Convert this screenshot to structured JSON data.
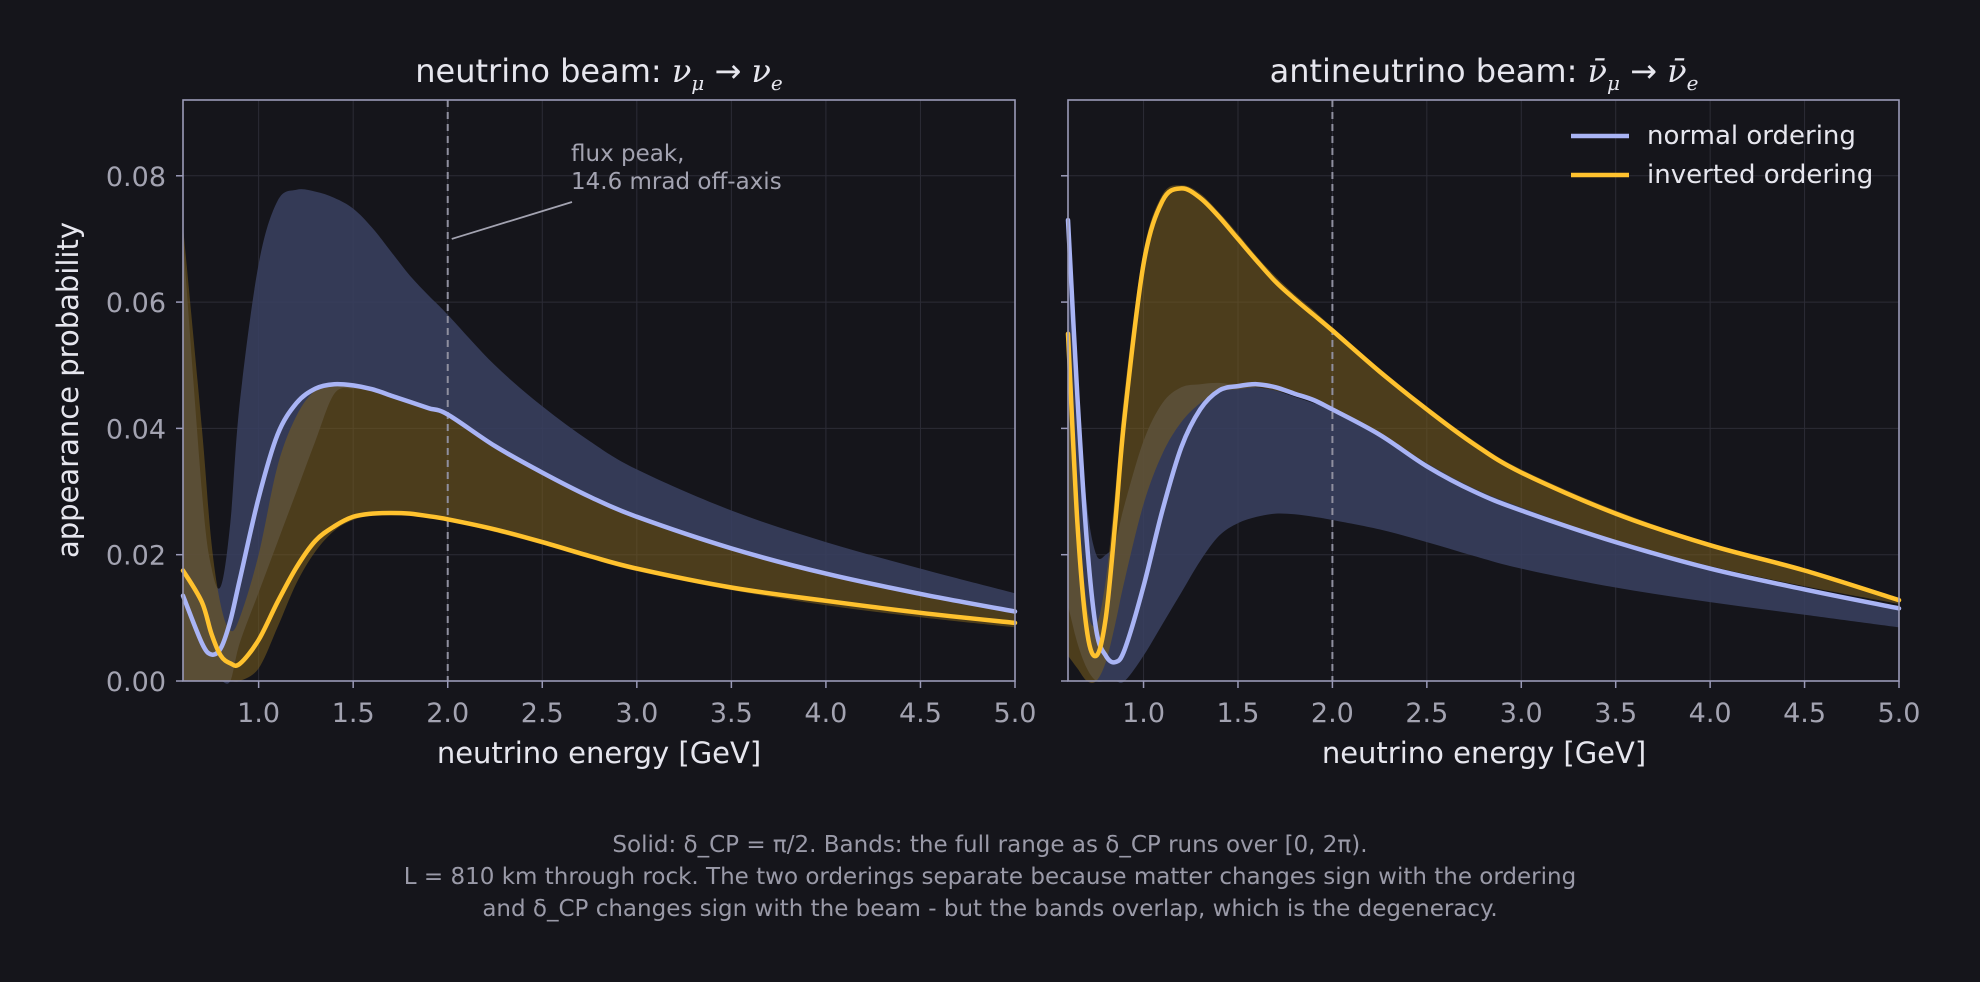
{
  "colors": {
    "background": "#15151b",
    "axes_edge": "#9a9ab8",
    "grid": "#2c2c36",
    "tick_text": "#a3a3b1",
    "label_text": "#e6e6ee",
    "annotation_text": "#a3a3b1",
    "normal_ordering": "#a9b4f5",
    "inverted_ordering": "#ffc22e",
    "normal_band": "#3a4160",
    "inverted_band": "#7a5f1d",
    "flux_line": "#8f8f9f"
  },
  "caption": {
    "line1": "Solid: δ_CP = π/2.  Bands: the full range as δ_CP runs over [0, 2π).",
    "line2": "L = 810 km through rock. The two orderings separate because matter changes sign with the ordering",
    "line3": "and δ_CP changes sign with the beam - but the bands overlap, which is the degeneracy."
  },
  "chart_data": [
    {
      "type": "line",
      "title": "neutrino beam:  ν_μ → ν_e",
      "xlabel": "neutrino energy  [GeV]",
      "ylabel": "appearance probability",
      "xlim": [
        0.6,
        5.0
      ],
      "ylim": [
        0.0,
        0.092
      ],
      "xticks": [
        "1.0",
        "1.5",
        "2.0",
        "2.5",
        "3.0",
        "3.5",
        "4.0",
        "4.5",
        "5.0"
      ],
      "yticks": [
        "0.00",
        "0.02",
        "0.04",
        "0.06",
        "0.08"
      ],
      "grid": true,
      "flux_peak_x": 2.0,
      "annotation": {
        "line1": "flux peak,",
        "line2": "14.6 mrad off-axis",
        "x": 2.0,
        "y": 0.07
      },
      "x": [
        0.6,
        0.7,
        0.75,
        0.8,
        0.85,
        0.9,
        1.0,
        1.1,
        1.2,
        1.3,
        1.4,
        1.5,
        1.6,
        1.7,
        1.8,
        1.9,
        2.0,
        2.25,
        2.5,
        2.75,
        3.0,
        3.5,
        4.0,
        4.5,
        5.0
      ],
      "series": [
        {
          "name": "normal ordering",
          "values": [
            0.0135,
            0.006,
            0.0042,
            0.0052,
            0.0095,
            0.016,
            0.029,
            0.039,
            0.044,
            0.0463,
            0.047,
            0.0468,
            0.0462,
            0.0452,
            0.0442,
            0.0432,
            0.0422,
            0.0372,
            0.033,
            0.0292,
            0.026,
            0.021,
            0.017,
            0.0138,
            0.011
          ],
          "band_low": [
            0.0,
            0.0,
            0.0,
            0.0,
            0.0,
            0.006,
            0.014,
            0.022,
            0.03,
            0.038,
            0.0455,
            0.0463,
            0.046,
            0.045,
            0.044,
            0.043,
            0.042,
            0.037,
            0.0328,
            0.029,
            0.0258,
            0.0208,
            0.0168,
            0.0136,
            0.0108
          ],
          "band_high": [
            0.07,
            0.03,
            0.018,
            0.015,
            0.025,
            0.044,
            0.066,
            0.076,
            0.0778,
            0.0775,
            0.0765,
            0.0748,
            0.0718,
            0.068,
            0.0642,
            0.061,
            0.058,
            0.05,
            0.0435,
            0.038,
            0.0335,
            0.027,
            0.022,
            0.0178,
            0.0139
          ]
        },
        {
          "name": "inverted ordering",
          "values": [
            0.0175,
            0.0125,
            0.0075,
            0.004,
            0.0028,
            0.0027,
            0.0065,
            0.0125,
            0.018,
            0.0222,
            0.0245,
            0.026,
            0.0265,
            0.0266,
            0.0265,
            0.0261,
            0.0256,
            0.024,
            0.022,
            0.0198,
            0.0178,
            0.0148,
            0.0127,
            0.0108,
            0.0092
          ],
          "band_low": [
            0.0,
            0.0,
            0.0,
            0.0,
            0.0,
            0.0,
            0.002,
            0.0085,
            0.0155,
            0.0205,
            0.0238,
            0.0255,
            0.0262,
            0.0264,
            0.0263,
            0.026,
            0.0254,
            0.0236,
            0.0216,
            0.0194,
            0.0174,
            0.0144,
            0.012,
            0.0101,
            0.0085
          ],
          "band_high": [
            0.072,
            0.04,
            0.022,
            0.012,
            0.008,
            0.01,
            0.02,
            0.034,
            0.042,
            0.046,
            0.0468,
            0.0466,
            0.046,
            0.0452,
            0.0442,
            0.0432,
            0.0422,
            0.0375,
            0.0333,
            0.0295,
            0.0262,
            0.0212,
            0.0172,
            0.014,
            0.0112
          ]
        }
      ]
    },
    {
      "type": "line",
      "title": "antineutrino beam:  ν̄_μ → ν̄_e",
      "xlabel": "neutrino energy  [GeV]",
      "ylabel": "",
      "xlim": [
        0.6,
        5.0
      ],
      "ylim": [
        0.0,
        0.092
      ],
      "xticks": [
        "1.0",
        "1.5",
        "2.0",
        "2.5",
        "3.0",
        "3.5",
        "4.0",
        "4.5",
        "5.0"
      ],
      "yticks": [],
      "grid": true,
      "flux_peak_x": 2.0,
      "legend": {
        "position": "top-right",
        "entries": [
          "normal ordering",
          "inverted ordering"
        ]
      },
      "x": [
        0.6,
        0.65,
        0.7,
        0.75,
        0.8,
        0.85,
        0.9,
        1.0,
        1.1,
        1.2,
        1.3,
        1.4,
        1.5,
        1.6,
        1.7,
        1.8,
        1.9,
        2.0,
        2.25,
        2.5,
        2.75,
        3.0,
        3.5,
        4.0,
        4.5,
        5.0
      ],
      "series": [
        {
          "name": "normal ordering",
          "values": [
            0.073,
            0.045,
            0.022,
            0.008,
            0.004,
            0.003,
            0.005,
            0.015,
            0.027,
            0.037,
            0.043,
            0.046,
            0.0467,
            0.047,
            0.0465,
            0.0455,
            0.0445,
            0.043,
            0.039,
            0.034,
            0.03,
            0.027,
            0.022,
            0.0178,
            0.0145,
            0.0115
          ],
          "band_low": [
            0.012,
            0.006,
            0.002,
            0.0,
            0.0,
            0.0,
            0.0,
            0.004,
            0.009,
            0.014,
            0.019,
            0.023,
            0.025,
            0.026,
            0.0265,
            0.0264,
            0.026,
            0.0255,
            0.024,
            0.022,
            0.0198,
            0.0178,
            0.0148,
            0.0125,
            0.0105,
            0.0085
          ],
          "band_high": [
            0.073,
            0.047,
            0.028,
            0.02,
            0.02,
            0.022,
            0.028,
            0.038,
            0.044,
            0.0465,
            0.047,
            0.0472,
            0.0468,
            0.0465,
            0.046,
            0.045,
            0.044,
            0.043,
            0.039,
            0.0345,
            0.0305,
            0.0275,
            0.0222,
            0.018,
            0.0147,
            0.0118
          ]
        },
        {
          "name": "inverted ordering",
          "values": [
            0.055,
            0.025,
            0.008,
            0.004,
            0.01,
            0.025,
            0.042,
            0.066,
            0.076,
            0.078,
            0.0765,
            0.0735,
            0.07,
            0.0665,
            0.0632,
            0.0605,
            0.058,
            0.0555,
            0.049,
            0.043,
            0.0375,
            0.033,
            0.0265,
            0.0215,
            0.0175,
            0.0128
          ],
          "band_low": [
            0.004,
            0.002,
            0.0,
            0.0,
            0.003,
            0.009,
            0.016,
            0.028,
            0.036,
            0.041,
            0.044,
            0.0458,
            0.0462,
            0.0465,
            0.046,
            0.0452,
            0.0442,
            0.0432,
            0.0392,
            0.0345,
            0.0305,
            0.0275,
            0.0222,
            0.0182,
            0.015,
            0.0122
          ],
          "band_high": [
            0.058,
            0.03,
            0.012,
            0.009,
            0.016,
            0.03,
            0.046,
            0.068,
            0.077,
            0.0785,
            0.0772,
            0.0742,
            0.0708,
            0.0672,
            0.064,
            0.0612,
            0.0587,
            0.056,
            0.0495,
            0.0435,
            0.038,
            0.0335,
            0.027,
            0.0218,
            0.0178,
            0.0132
          ]
        }
      ]
    }
  ]
}
